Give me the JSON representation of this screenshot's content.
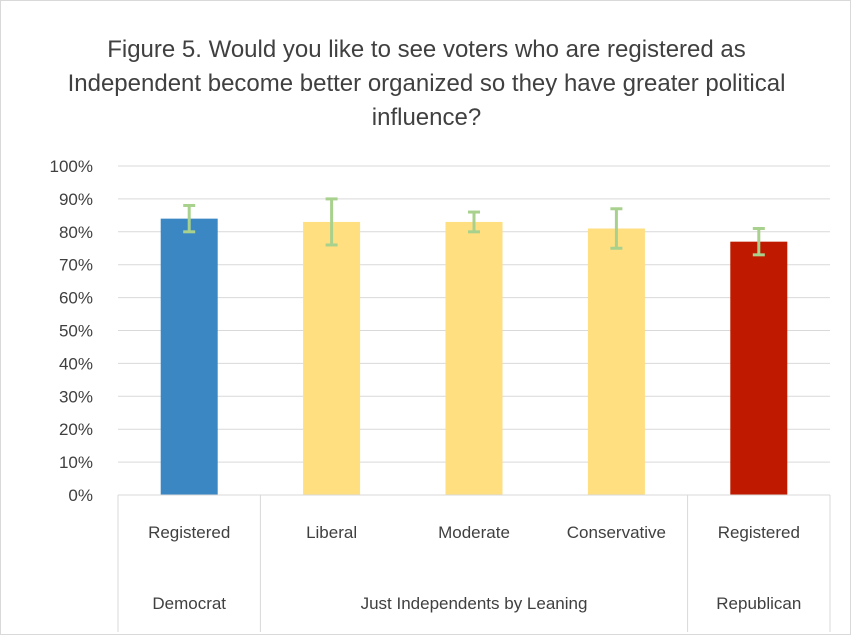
{
  "chart_data": {
    "type": "bar",
    "title": "Figure 5. Would you like to see voters who are registered as Independent become better organized so they have greater political influence?",
    "ylim": [
      0,
      100
    ],
    "yticks": [
      "0%",
      "10%",
      "20%",
      "30%",
      "40%",
      "50%",
      "60%",
      "70%",
      "80%",
      "90%",
      "100%"
    ],
    "grid": true,
    "categories": [
      "Registered",
      "Liberal",
      "Moderate",
      "Conservative",
      "Registered"
    ],
    "groups": [
      {
        "label": "Democrat",
        "span": 1
      },
      {
        "label": "Just Independents by Leaning",
        "span": 3
      },
      {
        "label": "Republican",
        "span": 1
      }
    ],
    "values": [
      84,
      83,
      83,
      81,
      77
    ],
    "error_low": [
      80,
      76,
      80,
      75,
      73
    ],
    "error_high": [
      88,
      90,
      86,
      87,
      81
    ],
    "colors": [
      "#3a87c4",
      "#ffdf80",
      "#ffdf80",
      "#ffdf80",
      "#bf1a00"
    ],
    "error_color": "#a9d18e"
  }
}
